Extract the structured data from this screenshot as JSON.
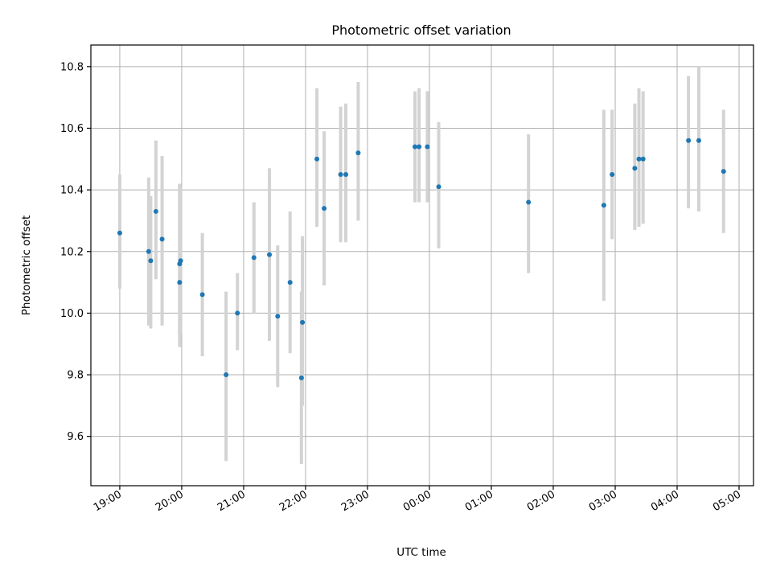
{
  "chart_data": {
    "type": "scatter",
    "title": "Photometric offset variation",
    "xlabel": "UTC time",
    "ylabel": "Photometric offset",
    "x_axis_type": "time",
    "xlim": [
      "18:32",
      "05:14"
    ],
    "ylim": [
      9.44,
      10.87
    ],
    "x_ticks": [
      {
        "label": "19:00",
        "time": "19:00"
      },
      {
        "label": "20:00",
        "time": "20:00"
      },
      {
        "label": "21:00",
        "time": "21:00"
      },
      {
        "label": "22:00",
        "time": "22:00"
      },
      {
        "label": "23:00",
        "time": "23:00"
      },
      {
        "label": "00:00",
        "time": "00:00"
      },
      {
        "label": "01:00",
        "time": "01:00"
      },
      {
        "label": "02:00",
        "time": "02:00"
      },
      {
        "label": "03:00",
        "time": "03:00"
      },
      {
        "label": "04:00",
        "time": "04:00"
      },
      {
        "label": "05:00",
        "time": "05:00"
      }
    ],
    "y_ticks": [
      "9.6",
      "9.8",
      "10.0",
      "10.2",
      "10.4",
      "10.6",
      "10.8"
    ],
    "grid": true,
    "marker_color": "#1f77b4",
    "errorbar_color": "#d3d3d3",
    "points": [
      {
        "time": "19:00",
        "y": 10.26,
        "lo": 10.08,
        "hi": 10.45
      },
      {
        "time": "19:28",
        "y": 10.2,
        "lo": 9.96,
        "hi": 10.44
      },
      {
        "time": "19:30",
        "y": 10.17,
        "lo": 9.95,
        "hi": 10.38
      },
      {
        "time": "19:35",
        "y": 10.33,
        "lo": 10.11,
        "hi": 10.56
      },
      {
        "time": "19:41",
        "y": 10.24,
        "lo": 9.96,
        "hi": 10.51
      },
      {
        "time": "19:58",
        "y": 10.1,
        "lo": 9.89,
        "hi": 10.42
      },
      {
        "time": "19:58",
        "y": 10.16,
        "lo": 9.93,
        "hi": 10.42
      },
      {
        "time": "19:59",
        "y": 10.17,
        "lo": 9.93,
        "hi": 10.41
      },
      {
        "time": "20:20",
        "y": 10.06,
        "lo": 9.86,
        "hi": 10.26
      },
      {
        "time": "20:43",
        "y": 9.8,
        "lo": 9.52,
        "hi": 10.07
      },
      {
        "time": "20:54",
        "y": 10.0,
        "lo": 9.88,
        "hi": 10.13
      },
      {
        "time": "21:10",
        "y": 10.18,
        "lo": 10.0,
        "hi": 10.36
      },
      {
        "time": "21:25",
        "y": 10.19,
        "lo": 9.91,
        "hi": 10.47
      },
      {
        "time": "21:33",
        "y": 9.99,
        "lo": 9.76,
        "hi": 10.22
      },
      {
        "time": "21:45",
        "y": 10.1,
        "lo": 9.87,
        "hi": 10.33
      },
      {
        "time": "21:56",
        "y": 9.79,
        "lo": 9.51,
        "hi": 10.07
      },
      {
        "time": "21:57",
        "y": 9.97,
        "lo": 9.7,
        "hi": 10.25
      },
      {
        "time": "22:11",
        "y": 10.5,
        "lo": 10.28,
        "hi": 10.73
      },
      {
        "time": "22:18",
        "y": 10.34,
        "lo": 10.09,
        "hi": 10.59
      },
      {
        "time": "22:34",
        "y": 10.45,
        "lo": 10.23,
        "hi": 10.67
      },
      {
        "time": "22:39",
        "y": 10.45,
        "lo": 10.23,
        "hi": 10.68
      },
      {
        "time": "22:51",
        "y": 10.52,
        "lo": 10.3,
        "hi": 10.75
      },
      {
        "time": "23:46",
        "y": 10.54,
        "lo": 10.36,
        "hi": 10.72
      },
      {
        "time": "23:50",
        "y": 10.54,
        "lo": 10.36,
        "hi": 10.73
      },
      {
        "time": "23:58",
        "y": 10.54,
        "lo": 10.36,
        "hi": 10.72
      },
      {
        "time": "00:09",
        "y": 10.41,
        "lo": 10.21,
        "hi": 10.62
      },
      {
        "time": "01:36",
        "y": 10.36,
        "lo": 10.13,
        "hi": 10.58
      },
      {
        "time": "02:49",
        "y": 10.35,
        "lo": 10.04,
        "hi": 10.66
      },
      {
        "time": "02:57",
        "y": 10.45,
        "lo": 10.24,
        "hi": 10.66
      },
      {
        "time": "03:19",
        "y": 10.47,
        "lo": 10.27,
        "hi": 10.68
      },
      {
        "time": "03:23",
        "y": 10.5,
        "lo": 10.28,
        "hi": 10.73
      },
      {
        "time": "03:27",
        "y": 10.5,
        "lo": 10.29,
        "hi": 10.72
      },
      {
        "time": "04:11",
        "y": 10.56,
        "lo": 10.34,
        "hi": 10.77
      },
      {
        "time": "04:21",
        "y": 10.56,
        "lo": 10.33,
        "hi": 10.8
      },
      {
        "time": "04:45",
        "y": 10.46,
        "lo": 10.26,
        "hi": 10.66
      }
    ]
  }
}
